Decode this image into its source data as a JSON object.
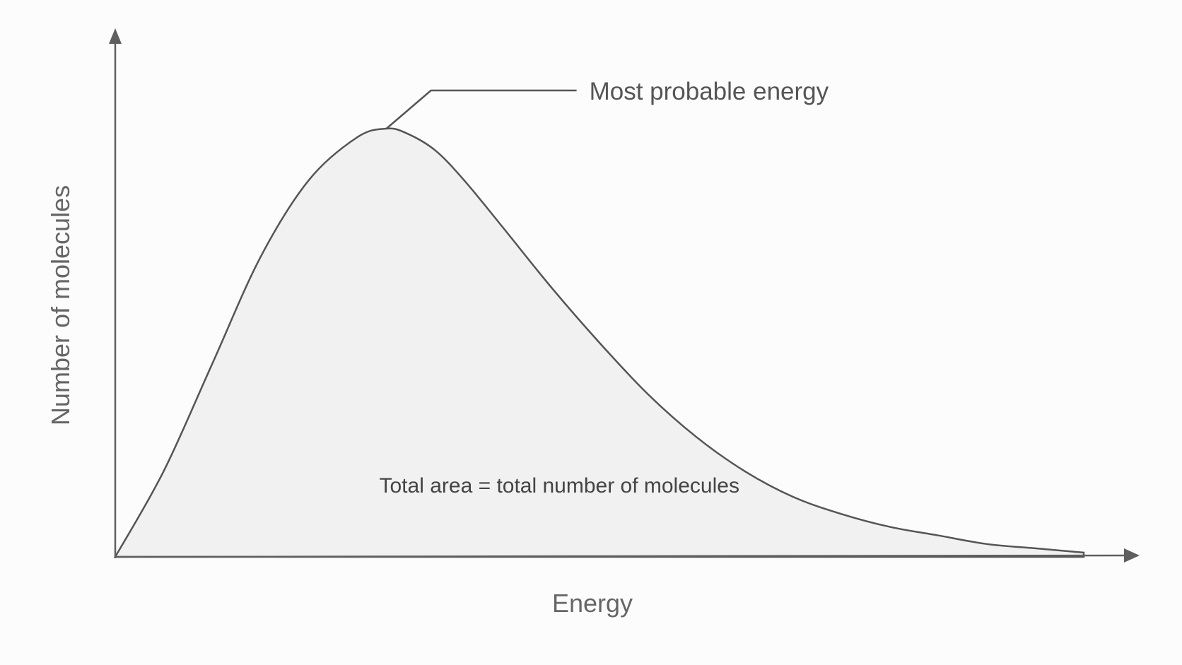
{
  "chart_data": {
    "type": "area",
    "title": "",
    "xlabel": "Energy",
    "ylabel": "Number of molecules",
    "xlim": [
      0,
      1
    ],
    "ylim": [
      0,
      1
    ],
    "grid": false,
    "legend": "none",
    "series": [
      {
        "x": [
          0,
          0.05,
          0.1,
          0.15,
          0.2,
          0.25,
          0.28,
          0.3,
          0.33,
          0.36,
          0.4,
          0.45,
          0.5,
          0.55,
          0.6,
          0.65,
          0.7,
          0.75,
          0.8,
          0.85,
          0.9,
          0.95,
          1.0
        ],
        "y": [
          0,
          0.2,
          0.45,
          0.7,
          0.88,
          0.98,
          1.0,
          0.99,
          0.95,
          0.88,
          0.77,
          0.63,
          0.5,
          0.38,
          0.28,
          0.2,
          0.14,
          0.1,
          0.07,
          0.05,
          0.03,
          0.02,
          0.01
        ]
      }
    ],
    "annotations": [
      {
        "text": "Most probable energy",
        "x": 0.28,
        "y": 1.0
      },
      {
        "text": "Total area = total number of molecules",
        "x": 0.35,
        "y": 0.15
      }
    ],
    "colors": {
      "axis": "#5f5f5f",
      "curve": "#555555",
      "fill": "#f1f1f1"
    }
  }
}
